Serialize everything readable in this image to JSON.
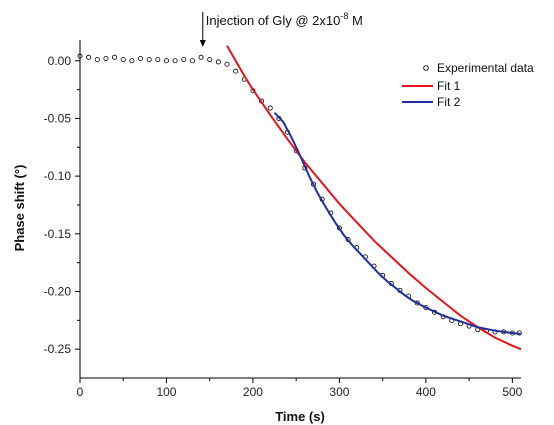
{
  "chart_data": {
    "type": "scatter",
    "annotation": {
      "prefix": "Injection of Gly @ 2x10",
      "exponent": "-8",
      "suffix": " M",
      "x": 142
    },
    "xlabel": "Time (s)",
    "ylabel": "Phase shift (°)",
    "xlim": [
      0,
      510
    ],
    "ylim": [
      -0.275,
      0.018
    ],
    "x_ticks": [
      0,
      100,
      200,
      300,
      400,
      500
    ],
    "y_ticks": [
      0.0,
      -0.05,
      -0.1,
      -0.15,
      -0.2,
      -0.25
    ],
    "y_tick_labels": [
      "0.00",
      "-0.05",
      "-0.10",
      "-0.15",
      "-0.20",
      "-0.25"
    ],
    "grid": false,
    "legend_position": "top-right",
    "series": [
      {
        "name": "Experimental data",
        "kind": "points",
        "color": "#000000",
        "points": [
          [
            0,
            0.004
          ],
          [
            10,
            0.003
          ],
          [
            20,
            0.001
          ],
          [
            30,
            0.002
          ],
          [
            40,
            0.003
          ],
          [
            50,
            0.001
          ],
          [
            60,
            0.0
          ],
          [
            70,
            0.002
          ],
          [
            80,
            0.001
          ],
          [
            90,
            0.001
          ],
          [
            100,
            0.0
          ],
          [
            110,
            0.0
          ],
          [
            120,
            0.001
          ],
          [
            130,
            0.0
          ],
          [
            140,
            0.003
          ],
          [
            150,
            0.001
          ],
          [
            160,
            -0.001
          ],
          [
            170,
            -0.003
          ],
          [
            180,
            -0.009
          ],
          [
            190,
            -0.016
          ],
          [
            200,
            -0.026
          ],
          [
            210,
            -0.035
          ],
          [
            220,
            -0.041
          ],
          [
            230,
            -0.05
          ],
          [
            240,
            -0.062
          ],
          [
            250,
            -0.078
          ],
          [
            260,
            -0.093
          ],
          [
            270,
            -0.107
          ],
          [
            280,
            -0.12
          ],
          [
            290,
            -0.132
          ],
          [
            300,
            -0.145
          ],
          [
            310,
            -0.155
          ],
          [
            320,
            -0.162
          ],
          [
            330,
            -0.17
          ],
          [
            340,
            -0.178
          ],
          [
            350,
            -0.186
          ],
          [
            360,
            -0.193
          ],
          [
            370,
            -0.199
          ],
          [
            380,
            -0.204
          ],
          [
            390,
            -0.21
          ],
          [
            400,
            -0.214
          ],
          [
            410,
            -0.218
          ],
          [
            420,
            -0.222
          ],
          [
            430,
            -0.225
          ],
          [
            440,
            -0.228
          ],
          [
            450,
            -0.23
          ],
          [
            460,
            -0.233
          ],
          [
            470,
            -0.234
          ],
          [
            480,
            -0.235
          ],
          [
            490,
            -0.235
          ],
          [
            500,
            -0.236
          ],
          [
            508,
            -0.236
          ]
        ]
      },
      {
        "name": "Fit 1",
        "kind": "line",
        "color": "#e8141b",
        "points": [
          [
            170,
            0.013
          ],
          [
            180,
            0.0
          ],
          [
            190,
            -0.013
          ],
          [
            200,
            -0.025
          ],
          [
            220,
            -0.047
          ],
          [
            240,
            -0.068
          ],
          [
            260,
            -0.088
          ],
          [
            280,
            -0.106
          ],
          [
            300,
            -0.124
          ],
          [
            320,
            -0.14
          ],
          [
            340,
            -0.156
          ],
          [
            360,
            -0.17
          ],
          [
            380,
            -0.184
          ],
          [
            400,
            -0.197
          ],
          [
            420,
            -0.209
          ],
          [
            440,
            -0.221
          ],
          [
            460,
            -0.231
          ],
          [
            480,
            -0.24
          ],
          [
            500,
            -0.247
          ],
          [
            510,
            -0.25
          ]
        ]
      },
      {
        "name": "Fit 2",
        "kind": "line",
        "color": "#1f2f9e",
        "points": [
          [
            225,
            -0.045
          ],
          [
            235,
            -0.053
          ],
          [
            245,
            -0.067
          ],
          [
            255,
            -0.083
          ],
          [
            265,
            -0.1
          ],
          [
            275,
            -0.115
          ],
          [
            285,
            -0.128
          ],
          [
            295,
            -0.14
          ],
          [
            305,
            -0.151
          ],
          [
            315,
            -0.16
          ],
          [
            325,
            -0.168
          ],
          [
            335,
            -0.176
          ],
          [
            345,
            -0.184
          ],
          [
            355,
            -0.191
          ],
          [
            365,
            -0.197
          ],
          [
            375,
            -0.203
          ],
          [
            385,
            -0.208
          ],
          [
            400,
            -0.214
          ],
          [
            420,
            -0.221
          ],
          [
            440,
            -0.226
          ],
          [
            460,
            -0.231
          ],
          [
            480,
            -0.234
          ],
          [
            500,
            -0.236
          ],
          [
            510,
            -0.237
          ]
        ]
      }
    ]
  }
}
